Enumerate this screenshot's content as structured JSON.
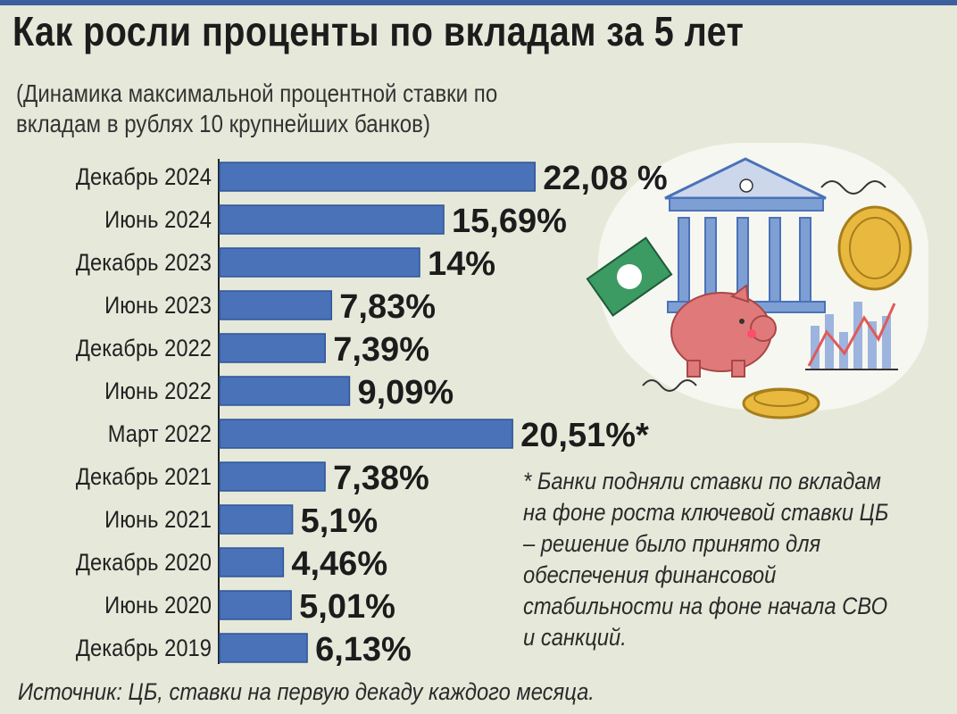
{
  "header": {
    "title": "Как росли проценты по вкладам за 5 лет",
    "subtitle": "(Динамика максимальной процентной ставки по вкладам в рублях 10 крупнейших банков)"
  },
  "note": "* Банки подняли ставки по вкладам на фоне роста ключевой ставки ЦБ – решение было принято для обеспечения финансовой стабильности на фоне начала СВО и санкций.",
  "source": "Источник: ЦБ, ставки на первую декаду каждого месяца.",
  "colors": {
    "bar": "#4a72b8",
    "bar_edge": "#2f5597",
    "background": "#e6e9da"
  },
  "chart_data": {
    "type": "bar",
    "orientation": "horizontal",
    "title": "Как росли проценты по вкладам за 5 лет",
    "categories": [
      "Декабрь 2024",
      "Июнь 2024",
      "Декабрь 2023",
      "Июнь 2023",
      "Декабрь 2022",
      "Июнь 2022",
      "Март 2022",
      "Декабрь 2021",
      "Июнь 2021",
      "Декабрь 2020",
      "Июнь 2020",
      "Декабрь 2019"
    ],
    "values": [
      22.08,
      15.69,
      14,
      7.83,
      7.39,
      9.09,
      20.51,
      7.38,
      5.1,
      4.46,
      5.01,
      6.13
    ],
    "labels": [
      "22,08 %",
      "15,69%",
      "14%",
      "7,83%",
      "7,39%",
      "9,09%",
      "20,51%*",
      "7,38%",
      "5,1%",
      "4,46%",
      "5,01%",
      "6,13%"
    ],
    "unit": "%"
  },
  "icons": [
    "bank-building-icon",
    "piggy-bank-icon",
    "coin-icon",
    "banknote-icon",
    "growth-chart-icon"
  ]
}
